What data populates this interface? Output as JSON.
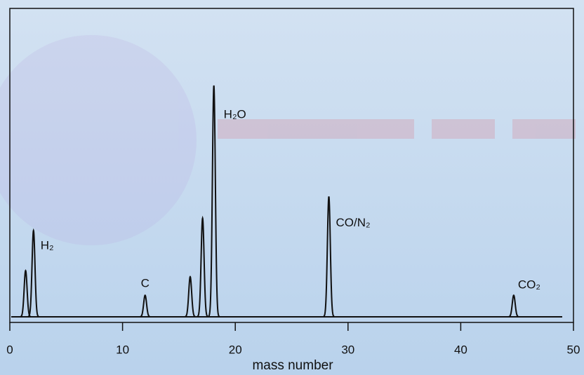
{
  "chart_data": {
    "type": "spectrum",
    "x_label": "mass number",
    "x": [
      1.4,
      2.1,
      12.0,
      16.0,
      17.1,
      18.1,
      28.3,
      44.7
    ],
    "values": [
      15,
      28,
      7,
      13,
      32,
      75,
      39,
      7
    ],
    "peak_labels": [
      null,
      "H₂",
      "C",
      null,
      null,
      "H₂O",
      "CO/N₂",
      "CO₂"
    ],
    "color": "#111111",
    "xlim": [
      0,
      50
    ],
    "xticks": [
      0,
      10,
      20,
      30,
      40,
      50
    ],
    "ylim": [
      0,
      100
    ],
    "grid": false
  }
}
